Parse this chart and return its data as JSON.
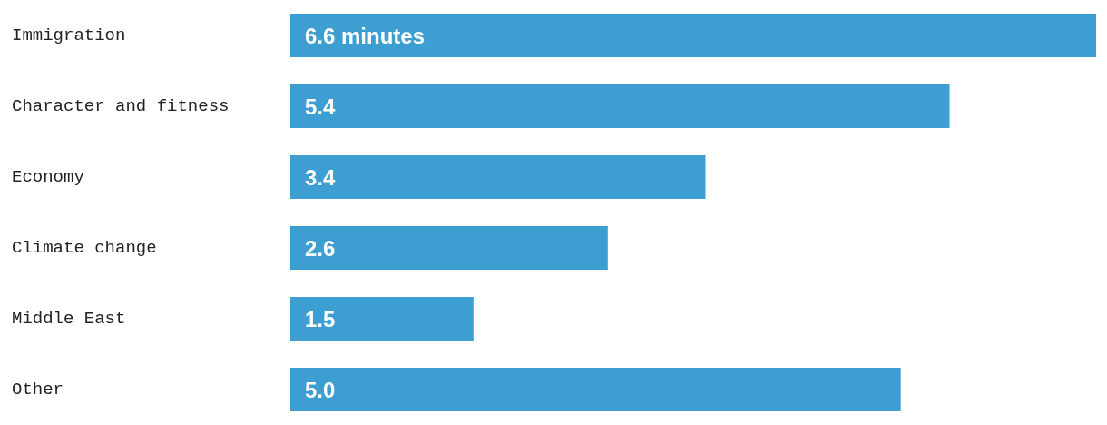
{
  "chart_data": {
    "type": "bar",
    "orientation": "horizontal",
    "categories": [
      "Immigration",
      "Character and fitness",
      "Economy",
      "Climate change",
      "Middle East",
      "Other"
    ],
    "values": [
      6.6,
      5.4,
      3.4,
      2.6,
      1.5,
      5.0
    ],
    "value_labels": [
      "6.6 minutes",
      "5.4",
      "3.4",
      "2.6",
      "1.5",
      "5.0"
    ],
    "color": "#3d9fd1",
    "tick_labels": "y"
  }
}
